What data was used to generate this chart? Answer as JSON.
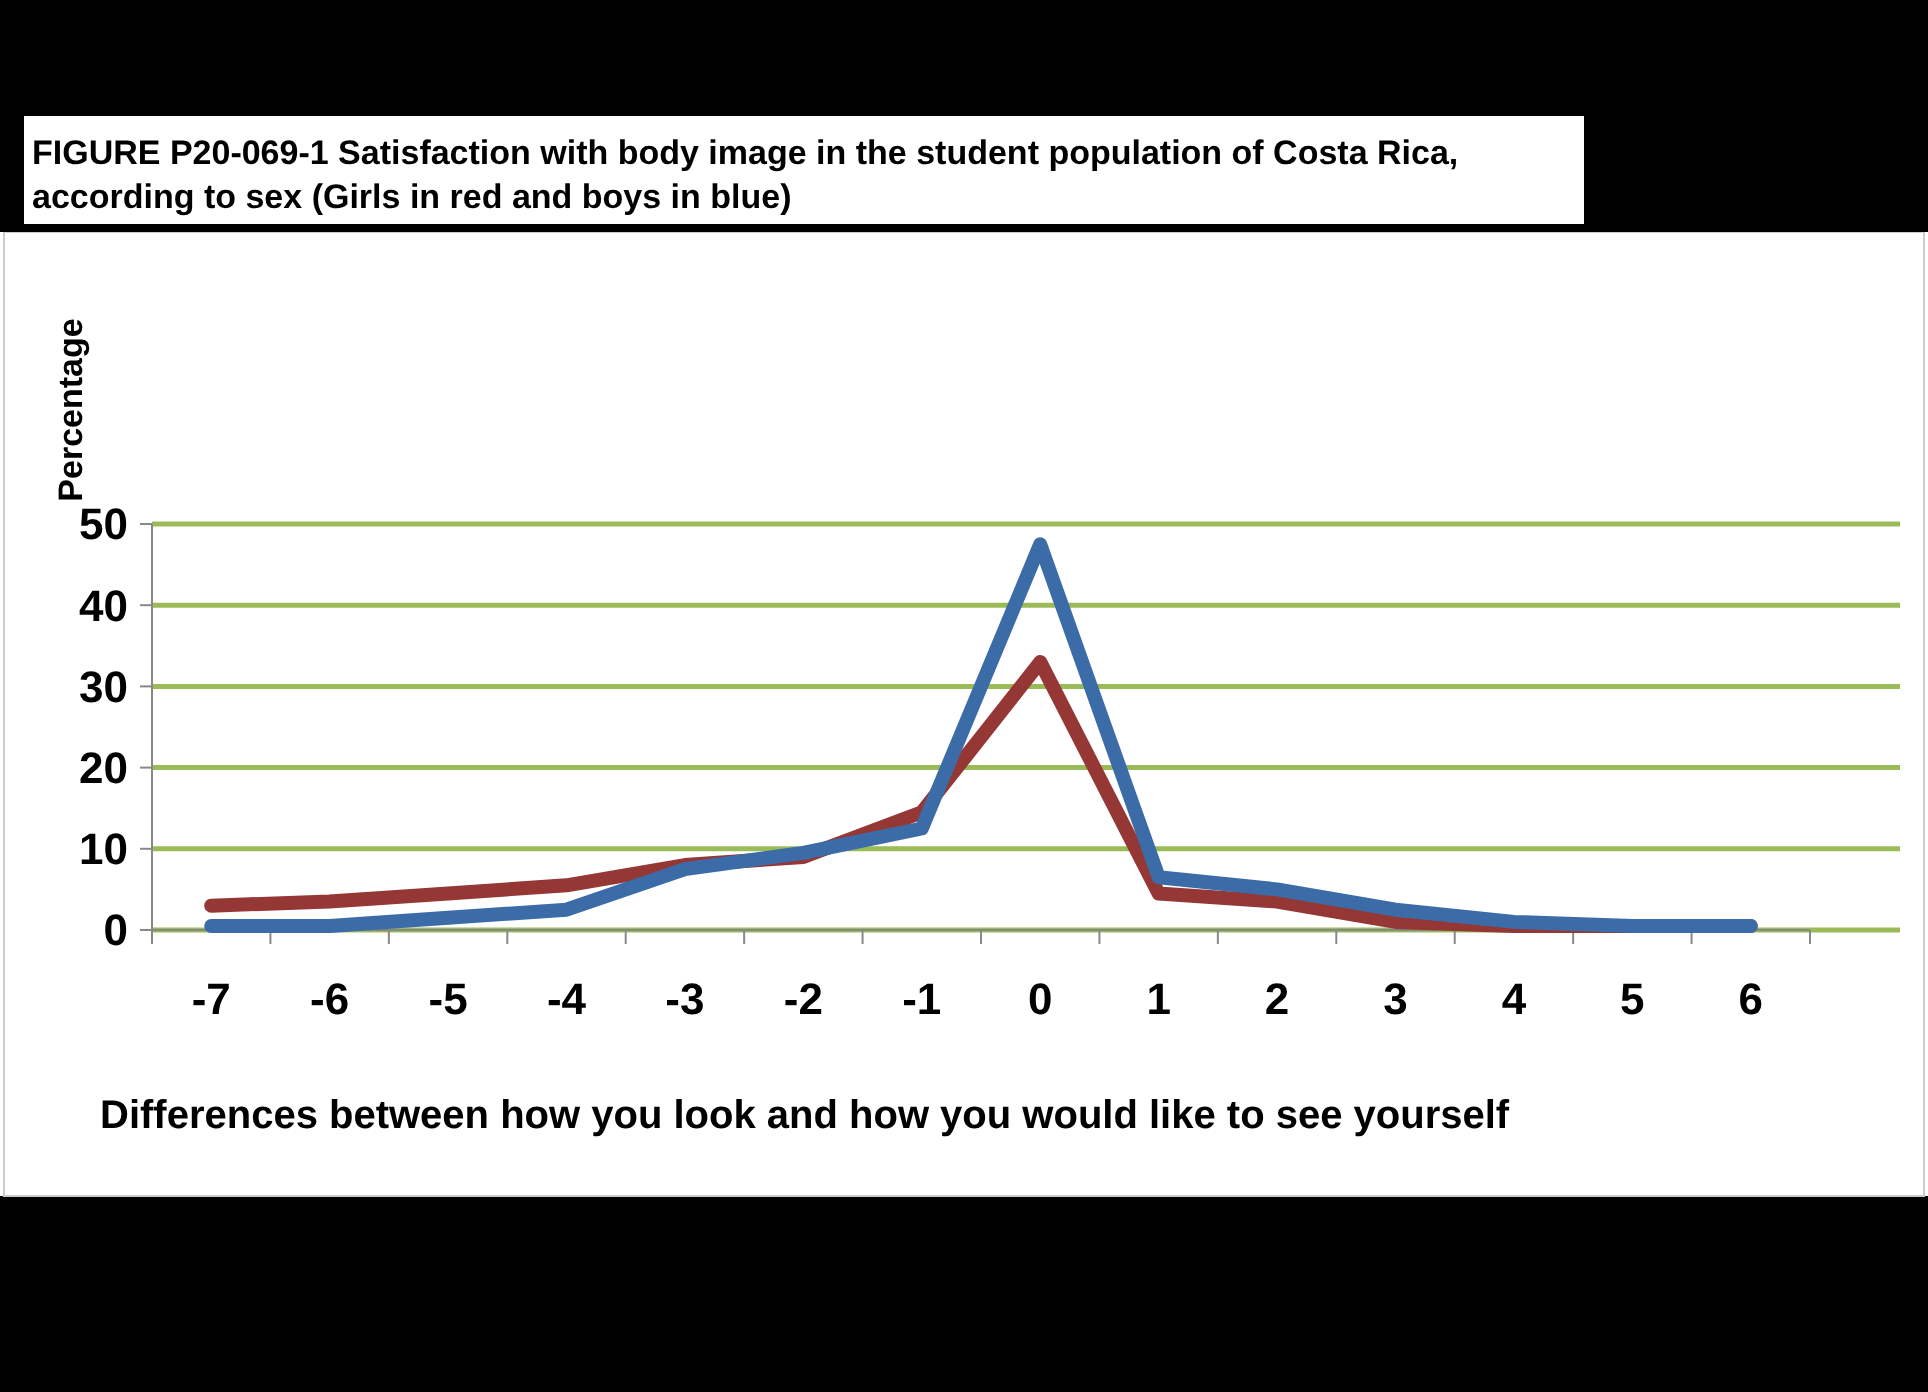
{
  "chart_data": {
    "type": "line",
    "title": "FIGURE P20-069-1 Satisfaction with body image in the student population of Costa Rica, according to sex (Girls in red and boys in blue)",
    "xlabel": "Differences between how you look and how you would like to see yourself",
    "ylabel": "Percentage",
    "categories": [
      "-7",
      "-6",
      "-5",
      "-4",
      "-3",
      "-2",
      "-1",
      "0",
      "1",
      "2",
      "3",
      "4",
      "5",
      "6"
    ],
    "series": [
      {
        "color": "#953735",
        "values": [
          3,
          3.5,
          4.5,
          5.5,
          8,
          9,
          14.5,
          33,
          4.5,
          3.5,
          1,
          0.5,
          0.5,
          0.5
        ]
      },
      {
        "color": "#3c6ca8",
        "values": [
          0.5,
          0.5,
          1.5,
          2.5,
          7.5,
          9.5,
          12.5,
          47.5,
          6.5,
          5,
          2.5,
          1,
          0.5,
          0.5
        ]
      }
    ],
    "ylim": [
      0,
      50
    ],
    "yticks": [
      0,
      10,
      20,
      30,
      40,
      50
    ],
    "grid": "y",
    "marker": "none",
    "line_style": "solid"
  }
}
